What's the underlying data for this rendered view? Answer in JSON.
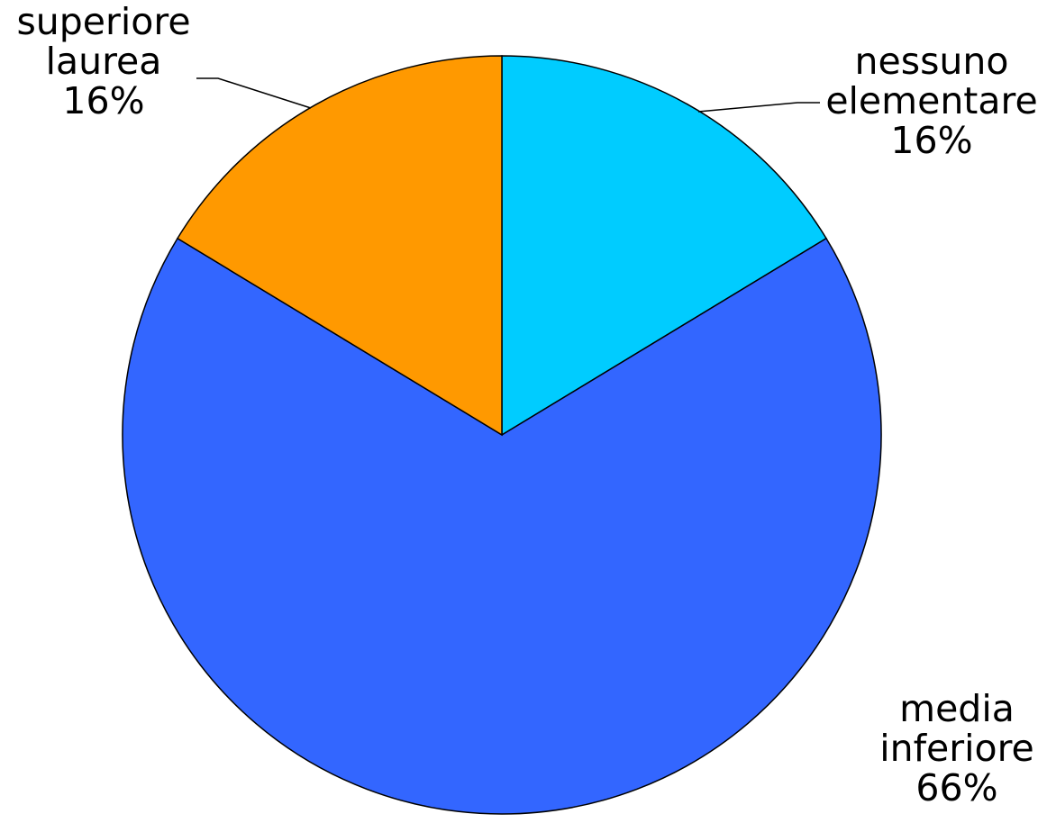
{
  "chart_data": {
    "type": "pie",
    "slices": [
      {
        "label_lines": [
          "nessuno",
          "elementare"
        ],
        "value": 16,
        "value_label": "16%",
        "color": "#00CCFF"
      },
      {
        "label_lines": [
          "media",
          "inferiore"
        ],
        "value": 66,
        "value_label": "66%",
        "color": "#3366FF"
      },
      {
        "label_lines": [
          "superiore",
          "laurea"
        ],
        "value": 16,
        "value_label": "16%",
        "color": "#FF9900"
      }
    ],
    "start_angle_deg": 0,
    "direction": "clockwise",
    "legend": "none"
  }
}
